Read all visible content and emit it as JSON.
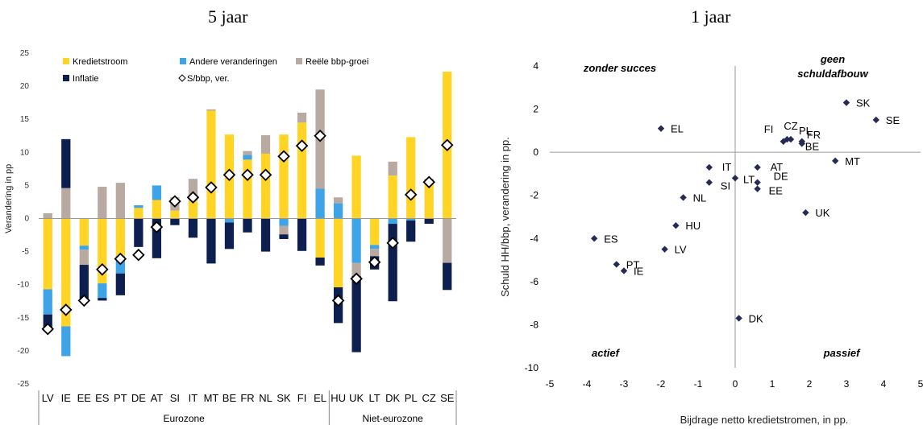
{
  "chart_data": [
    {
      "type": "bar",
      "title": "5 jaar",
      "ylabel": "Verandering in pp",
      "ylim": [
        -25,
        25
      ],
      "yticks": [
        25,
        20,
        15,
        10,
        5,
        0,
        -5,
        -10,
        -15,
        -20,
        -25
      ],
      "categories": [
        "LV",
        "IE",
        "EE",
        "ES",
        "PT",
        "DE",
        "AT",
        "SI",
        "IT",
        "MT",
        "BE",
        "FR",
        "NL",
        "SK",
        "FI",
        "EL",
        "HU",
        "UK",
        "LT",
        "DK",
        "PL",
        "CZ",
        "SE"
      ],
      "groups": [
        {
          "label": "Eurozone",
          "count": 16
        },
        {
          "label": "Niet-eurozone",
          "count": 7
        }
      ],
      "series": [
        {
          "name": "Kredietstroom",
          "color": "#FFD424",
          "values": [
            -10.7,
            -16.3,
            -4.1,
            -9.8,
            -5.7,
            1.6,
            2.8,
            1.2,
            2.7,
            16.3,
            12.7,
            8.9,
            9.8,
            12.7,
            14.5,
            -5.9,
            -10.4,
            9.5,
            -4.0,
            6.5,
            12.3,
            5.6,
            22.2
          ]
        },
        {
          "name": "Andere veranderingen",
          "color": "#3FA3E8",
          "values": [
            -3.8,
            -4.5,
            -0.6,
            -2.2,
            -2.6,
            0.4,
            2.2,
            0.0,
            0.0,
            0.0,
            -0.6,
            0.7,
            0.0,
            -1.1,
            0.0,
            4.5,
            2.3,
            -6.7,
            -0.6,
            -0.8,
            -0.3,
            0.0,
            0.0
          ]
        },
        {
          "name": "Reële bbp-groei",
          "color": "#B8A9A1",
          "values": [
            0.8,
            4.6,
            -2.3,
            4.8,
            5.4,
            0.0,
            0.0,
            2.0,
            3.3,
            0.2,
            0.0,
            0.6,
            2.8,
            -1.3,
            1.5,
            15.0,
            0.9,
            -2.0,
            -1.1,
            2.1,
            0.0,
            0.4,
            -6.7
          ]
        },
        {
          "name": "Inflatie",
          "color": "#0D1F4F",
          "values": [
            -2.5,
            7.4,
            -5.2,
            -0.4,
            -3.3,
            -4.3,
            -6.0,
            -1.0,
            -2.9,
            -6.8,
            -4.0,
            -2.1,
            -5.0,
            -0.7,
            -4.9,
            -1.2,
            -5.4,
            -11.5,
            -2.0,
            -11.7,
            -3.2,
            -0.8,
            -4.1
          ]
        },
        {
          "name": "S/bbp, ver.",
          "type": "marker",
          "marker": "diamond-open",
          "values": [
            -16.7,
            -13.8,
            -12.4,
            -7.7,
            -6.1,
            -5.5,
            -1.3,
            2.6,
            3.2,
            4.7,
            6.6,
            6.6,
            6.6,
            9.4,
            11.0,
            12.5,
            -12.4,
            -9.1,
            -6.6,
            -3.7,
            3.6,
            5.5,
            11.1
          ]
        }
      ]
    },
    {
      "type": "scatter",
      "title": "1 jaar",
      "xlabel": "Bijdrage netto kredietstromen, in pp.",
      "ylabel": "Schuld HH/bbp, verandering in pp.",
      "xlim": [
        -5,
        5
      ],
      "ylim": [
        -10,
        4
      ],
      "xticks": [
        -5,
        -4,
        -3,
        -2,
        -1,
        0,
        1,
        2,
        3,
        4,
        5
      ],
      "yticks": [
        4,
        2,
        0,
        -2,
        -4,
        -6,
        -8,
        -10
      ],
      "marker_color": "#262B55",
      "points": [
        {
          "label": "SK",
          "x": 3.0,
          "y": 2.3
        },
        {
          "label": "SE",
          "x": 3.8,
          "y": 1.5
        },
        {
          "label": "EL",
          "x": -2.0,
          "y": 1.1
        },
        {
          "label": "FI",
          "x": 1.3,
          "y": 0.5
        },
        {
          "label": "CZ",
          "x": 1.4,
          "y": 0.6
        },
        {
          "label": "PL",
          "x": 1.5,
          "y": 0.6
        },
        {
          "label": "FR",
          "x": 1.8,
          "y": 0.5
        },
        {
          "label": "BE",
          "x": 1.8,
          "y": 0.4
        },
        {
          "label": "MT",
          "x": 2.7,
          "y": -0.4
        },
        {
          "label": "IT",
          "x": -0.7,
          "y": -0.7
        },
        {
          "label": "AT",
          "x": 0.6,
          "y": -0.7
        },
        {
          "label": "LT",
          "x": 0.0,
          "y": -1.2
        },
        {
          "label": "SI",
          "x": -0.7,
          "y": -1.4
        },
        {
          "label": "DE",
          "x": 0.6,
          "y": -1.4
        },
        {
          "label": "EE",
          "x": 0.6,
          "y": -1.7
        },
        {
          "label": "NL",
          "x": -1.4,
          "y": -2.1
        },
        {
          "label": "UK",
          "x": 1.9,
          "y": -2.8
        },
        {
          "label": "HU",
          "x": -1.6,
          "y": -3.4
        },
        {
          "label": "ES",
          "x": -3.8,
          "y": -4.0
        },
        {
          "label": "LV",
          "x": -1.9,
          "y": -4.5
        },
        {
          "label": "PT",
          "x": -3.2,
          "y": -5.2
        },
        {
          "label": "IE",
          "x": -3.0,
          "y": -5.5
        },
        {
          "label": "DK",
          "x": 0.1,
          "y": -7.7
        }
      ],
      "quadrants": {
        "top_left": "zonder succes",
        "top_right_line1": "geen",
        "top_right_line2": "schuldafbouw",
        "bottom_left": "actief",
        "bottom_right": "passief"
      }
    }
  ]
}
